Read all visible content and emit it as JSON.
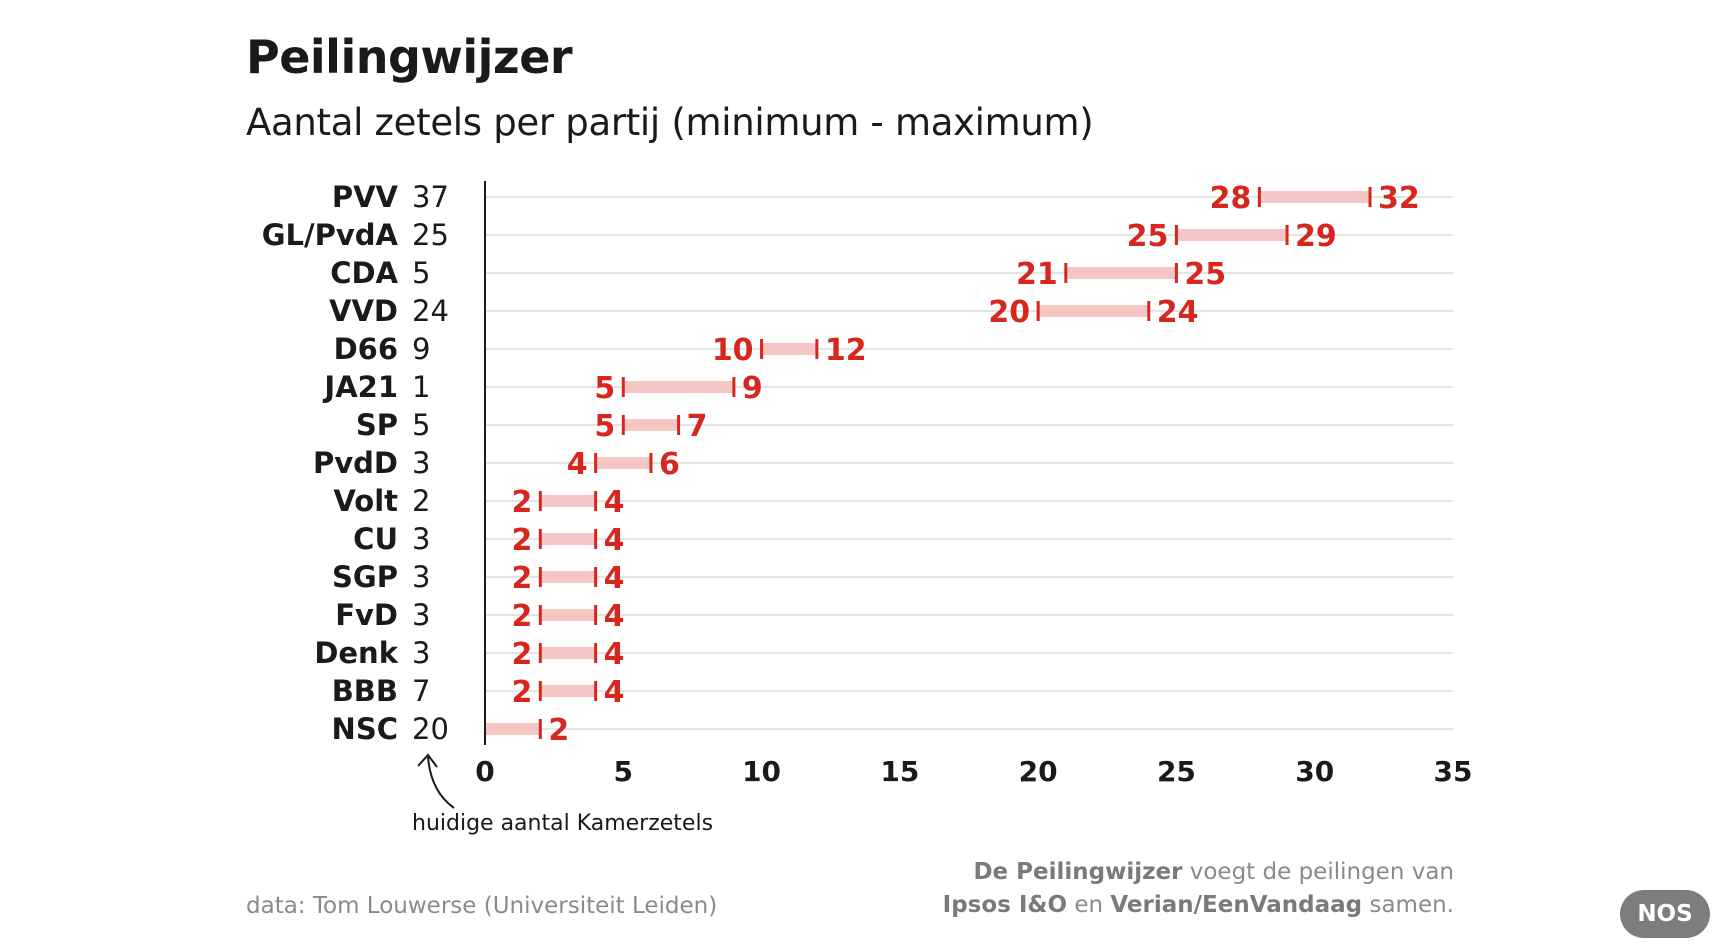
{
  "chart_data": {
    "type": "range-bar",
    "title": "Peilingwijzer",
    "subtitle": "Aantal zetels per partij (minimum - maximum)",
    "xlim": [
      0,
      35
    ],
    "xticks": [
      0,
      5,
      10,
      15,
      20,
      25,
      30,
      35
    ],
    "grid": true,
    "colors": {
      "range": "#f4c6c4",
      "marker": "#d6261e",
      "label": "#d6261e",
      "axis": "#1a1a1a",
      "grid": "#d4d4d4"
    },
    "parties": [
      {
        "name": "PVV",
        "current": "37",
        "min": 28,
        "max": 32
      },
      {
        "name": "GL/PvdA",
        "current": "25",
        "min": 25,
        "max": 29
      },
      {
        "name": "CDA",
        "current": "5",
        "min": 21,
        "max": 25
      },
      {
        "name": "VVD",
        "current": "24",
        "min": 20,
        "max": 24
      },
      {
        "name": "D66",
        "current": "9",
        "min": 10,
        "max": 12
      },
      {
        "name": "JA21",
        "current": "1",
        "min": 5,
        "max": 9
      },
      {
        "name": "SP",
        "current": "5",
        "min": 5,
        "max": 7
      },
      {
        "name": "PvdD",
        "current": "3",
        "min": 4,
        "max": 6
      },
      {
        "name": "Volt",
        "current": "2",
        "min": 2,
        "max": 4
      },
      {
        "name": "CU",
        "current": "3",
        "min": 2,
        "max": 4
      },
      {
        "name": "SGP",
        "current": "3",
        "min": 2,
        "max": 4
      },
      {
        "name": "FvD",
        "current": "3",
        "min": 2,
        "max": 4
      },
      {
        "name": "Denk",
        "current": "3",
        "min": 2,
        "max": 4
      },
      {
        "name": "BBB",
        "current": "7",
        "min": 2,
        "max": 4
      },
      {
        "name": "NSC",
        "current": "20",
        "min": 0,
        "max": 2
      }
    ],
    "annotation": "huidige aantal Kamerzetels"
  },
  "footer": {
    "source": "data: Tom Louwerse (Universiteit Leiden)",
    "note": {
      "part1": "De Peilingwijzer",
      "part2": " voegt de peilingen van",
      "part3": "Ipsos I&O",
      "part4": " en ",
      "part5": "Verian/EenVandaag",
      "part6": " samen."
    },
    "logo": "NOS"
  }
}
